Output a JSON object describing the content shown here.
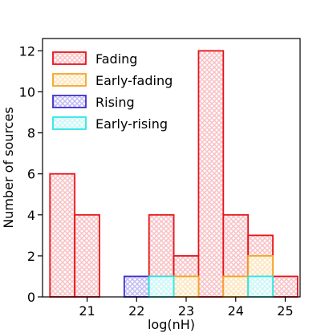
{
  "chart_data": {
    "type": "bar",
    "xlabel": "log(nH)",
    "ylabel": "Number of sources",
    "xlim": [
      20.1,
      25.3
    ],
    "ylim": [
      0,
      12.6
    ],
    "xticks": [
      21,
      22,
      23,
      24,
      25
    ],
    "yticks": [
      0,
      2,
      4,
      6,
      8,
      10,
      12
    ],
    "grid": false,
    "legend_position": "top-left",
    "bin_width": 0.5,
    "series": [
      {
        "name": "Fading",
        "edge_color": "#e8141b",
        "fill_color": "#f7b9bd",
        "bins": [
          {
            "x0": 20.25,
            "x1": 20.75,
            "count": 6
          },
          {
            "x0": 20.75,
            "x1": 21.25,
            "count": 4
          },
          {
            "x0": 22.25,
            "x1": 22.75,
            "count": 4
          },
          {
            "x0": 22.75,
            "x1": 23.25,
            "count": 2
          },
          {
            "x0": 23.25,
            "x1": 23.75,
            "count": 12
          },
          {
            "x0": 23.75,
            "x1": 24.25,
            "count": 4
          },
          {
            "x0": 24.25,
            "x1": 24.75,
            "count": 3
          },
          {
            "x0": 24.75,
            "x1": 25.25,
            "count": 1
          }
        ]
      },
      {
        "name": "Early-fading",
        "edge_color": "#f5a623",
        "fill_color": "#fde2b4",
        "bins": [
          {
            "x0": 22.75,
            "x1": 23.25,
            "count": 1
          },
          {
            "x0": 23.75,
            "x1": 24.25,
            "count": 1
          },
          {
            "x0": 24.25,
            "x1": 24.75,
            "count": 2
          }
        ]
      },
      {
        "name": "Rising",
        "edge_color": "#3a30d0",
        "fill_color": "#b8b4f0",
        "bins": [
          {
            "x0": 21.75,
            "x1": 22.25,
            "count": 1
          }
        ]
      },
      {
        "name": "Early-rising",
        "edge_color": "#2ee6e6",
        "fill_color": "#c2f6f6",
        "bins": [
          {
            "x0": 22.25,
            "x1": 22.75,
            "count": 1
          },
          {
            "x0": 24.25,
            "x1": 24.75,
            "count": 1
          }
        ]
      }
    ]
  }
}
